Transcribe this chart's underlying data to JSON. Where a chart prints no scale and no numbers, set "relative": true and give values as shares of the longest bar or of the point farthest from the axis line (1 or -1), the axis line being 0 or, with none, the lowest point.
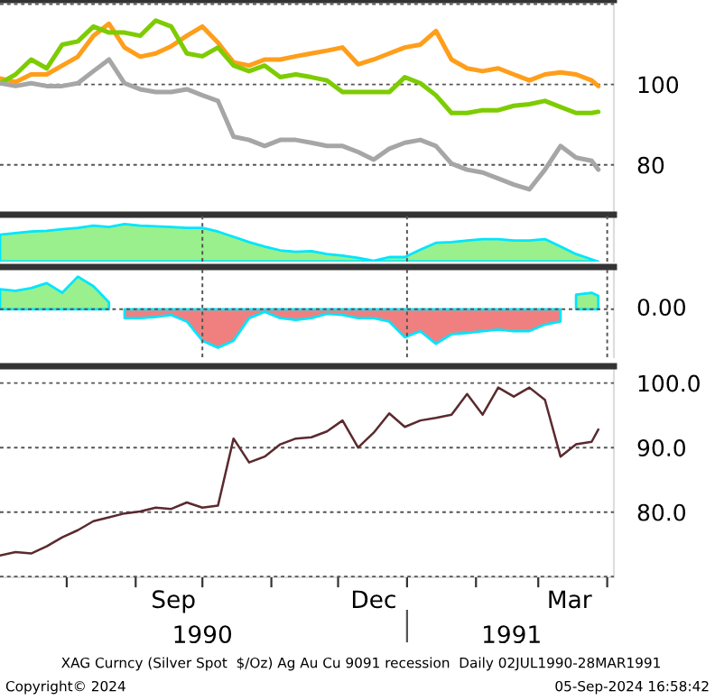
{
  "chart_data": [
    {
      "type": "line",
      "x": [
        "1990-07-02",
        "1990-07-09",
        "1990-07-16",
        "1990-07-23",
        "1990-07-30",
        "1990-08-06",
        "1990-08-13",
        "1990-08-20",
        "1990-08-27",
        "1990-09-03",
        "1990-09-10",
        "1990-09-17",
        "1990-09-24",
        "1990-10-01",
        "1990-10-08",
        "1990-10-15",
        "1990-10-22",
        "1990-10-29",
        "1990-11-05",
        "1990-11-12",
        "1990-11-19",
        "1990-11-26",
        "1990-12-03",
        "1990-12-10",
        "1990-12-17",
        "1990-12-24",
        "1990-12-31",
        "1991-01-07",
        "1991-01-14",
        "1991-01-21",
        "1991-01-28",
        "1991-02-04",
        "1991-02-11",
        "1991-02-18",
        "1991-02-25",
        "1991-03-04",
        "1991-03-11",
        "1991-03-18",
        "1991-03-25",
        "1991-03-28"
      ],
      "series": [
        {
          "color": "#ff9e1b",
          "values": [
            101.5,
            100.6,
            102.5,
            102.5,
            104.7,
            106.9,
            112.1,
            115.1,
            109.2,
            106.9,
            107.7,
            109.5,
            112.1,
            114.4,
            110.4,
            105.5,
            104.7,
            106.2,
            106.2,
            107,
            107.7,
            108.4,
            109.2,
            105,
            106.2,
            107.7,
            109.2,
            109.9,
            113.3,
            106.2,
            104,
            103.3,
            104,
            102.5,
            101,
            102.5,
            103,
            102.5,
            101,
            99.6
          ]
        },
        {
          "color": "#7dcc00",
          "values": [
            100.3,
            102.5,
            106.2,
            104,
            109.9,
            110.7,
            114.4,
            112.9,
            112.9,
            112.1,
            115.9,
            114.4,
            107.7,
            107,
            109.2,
            104.7,
            103.3,
            104.7,
            101.8,
            102.5,
            101.8,
            101,
            98.1,
            98.1,
            98.1,
            98.1,
            101.8,
            100.3,
            97.3,
            92.9,
            92.9,
            93.6,
            93.6,
            94.7,
            95.1,
            95.9,
            94.4,
            92.9,
            92.9,
            93.2
          ]
        },
        {
          "color": "#a6a6a6",
          "values": [
            100.3,
            99.6,
            100.3,
            99.6,
            99.6,
            100.3,
            103.3,
            106.2,
            100.3,
            98.8,
            98.1,
            98.1,
            98.8,
            97.3,
            95.9,
            87,
            86.2,
            84.7,
            86.2,
            86.2,
            85.5,
            84.7,
            84.7,
            83.2,
            81.3,
            84,
            85.5,
            86.2,
            84.7,
            80.3,
            78.8,
            78.1,
            76.6,
            75.1,
            73.9,
            78.8,
            84.7,
            81.8,
            81,
            78.8
          ]
        }
      ],
      "xlim": [
        "1990-07-02",
        "1991-04-04"
      ],
      "ylim": [
        68.5,
        121
      ],
      "yticks": [
        80,
        100,
        {
          "value": 120,
          "label": null
        }
      ],
      "grid": "y",
      "tick_labels": "y"
    },
    {
      "type": "area",
      "relative": true,
      "x": [
        "1990-07-02",
        "1990-07-09",
        "1990-07-16",
        "1990-07-23",
        "1990-07-30",
        "1990-08-06",
        "1990-08-13",
        "1990-08-20",
        "1990-08-27",
        "1990-09-03",
        "1990-09-10",
        "1990-09-17",
        "1990-09-24",
        "1990-10-01",
        "1990-10-08",
        "1990-10-15",
        "1990-10-22",
        "1990-10-29",
        "1990-11-05",
        "1990-11-12",
        "1990-11-19",
        "1990-11-26",
        "1990-12-03",
        "1990-12-10",
        "1990-12-17",
        "1990-12-24",
        "1990-12-31",
        "1991-01-07",
        "1991-01-14",
        "1991-01-21",
        "1991-01-28",
        "1991-02-04",
        "1991-02-11",
        "1991-02-18",
        "1991-02-25",
        "1991-03-04",
        "1991-03-11",
        "1991-03-18",
        "1991-03-25",
        "1991-03-28"
      ],
      "series": [
        {
          "color": "#99f08c",
          "values": [
            0.72,
            0.76,
            0.8,
            0.82,
            0.86,
            0.9,
            0.96,
            0.92,
            1,
            0.96,
            0.94,
            0.92,
            0.9,
            0.9,
            0.8,
            0.66,
            0.52,
            0.4,
            0.3,
            0.26,
            0.28,
            0.2,
            0.16,
            0.1,
            0.02,
            0.12,
            0.12,
            0.32,
            0.5,
            0.52,
            0.56,
            0.6,
            0.6,
            0.56,
            0.56,
            0.6,
            0.4,
            0.2,
            0.06,
            0
          ]
        }
      ],
      "xlim": [
        "1990-07-02",
        "1991-04-04"
      ],
      "xticks": [
        {
          "value": "1990-10-01",
          "label": null
        },
        {
          "value": "1991-01-01",
          "label": null
        },
        {
          "value": "1991-04-01",
          "label": null
        }
      ],
      "grid": "x",
      "tick_labels": false
    },
    {
      "type": "area",
      "relative": true,
      "x": [
        "1990-07-02",
        "1990-07-09",
        "1990-07-16",
        "1990-07-23",
        "1990-07-30",
        "1990-08-06",
        "1990-08-13",
        "1990-08-20",
        "1990-08-27",
        "1990-09-03",
        "1990-09-10",
        "1990-09-17",
        "1990-09-24",
        "1990-10-01",
        "1990-10-08",
        "1990-10-15",
        "1990-10-22",
        "1990-10-29",
        "1990-11-05",
        "1990-11-12",
        "1990-11-19",
        "1990-11-26",
        "1990-12-03",
        "1990-12-10",
        "1990-12-17",
        "1990-12-24",
        "1990-12-31",
        "1991-01-07",
        "1991-01-14",
        "1991-01-21",
        "1991-01-28",
        "1991-02-04",
        "1991-02-11",
        "1991-02-18",
        "1991-02-25",
        "1991-03-04",
        "1991-03-11",
        "1991-03-18",
        "1991-03-25",
        "1991-03-28"
      ],
      "series": [
        {
          "color": "#99f08c",
          "values": [
            0.52,
            0.48,
            0.55,
            0.68,
            0.43,
            0.85,
            0.6,
            0.18,
            null,
            null,
            null,
            null,
            null,
            null,
            null,
            null,
            null,
            null,
            null,
            null,
            null,
            null,
            null,
            null,
            null,
            null,
            null,
            null,
            null,
            null,
            null,
            null,
            null,
            null,
            null,
            null,
            null,
            0.38,
            0.43,
            0.35
          ]
        },
        {
          "color": "#f08080",
          "values": [
            null,
            null,
            null,
            null,
            null,
            null,
            null,
            null,
            -0.23,
            -0.23,
            -0.2,
            -0.15,
            -0.32,
            -0.82,
            -1,
            -0.82,
            -0.23,
            -0.07,
            -0.23,
            -0.28,
            -0.23,
            -0.12,
            -0.15,
            -0.23,
            -0.23,
            -0.32,
            -0.73,
            -0.57,
            -0.9,
            -0.65,
            -0.62,
            -0.57,
            -0.53,
            -0.57,
            -0.57,
            -0.4,
            -0.32,
            null,
            null,
            null
          ]
        }
      ],
      "xlim": [
        "1990-07-02",
        "1991-04-04"
      ],
      "xticks": [
        {
          "value": "1990-10-01",
          "label": null
        },
        {
          "value": "1991-01-01",
          "label": null
        },
        {
          "value": "1991-04-01",
          "label": null
        }
      ],
      "ref_lines": [
        {
          "axis": "y",
          "value": 0,
          "label": "0.00",
          "line_style": "dotted"
        }
      ],
      "grid": "x",
      "tick_labels": false
    },
    {
      "type": "line",
      "x": [
        "1990-07-02",
        "1990-07-09",
        "1990-07-16",
        "1990-07-23",
        "1990-07-30",
        "1990-08-06",
        "1990-08-13",
        "1990-08-20",
        "1990-08-27",
        "1990-09-03",
        "1990-09-10",
        "1990-09-17",
        "1990-09-24",
        "1990-10-01",
        "1990-10-08",
        "1990-10-15",
        "1990-10-22",
        "1990-10-29",
        "1990-11-05",
        "1990-11-12",
        "1990-11-19",
        "1990-11-26",
        "1990-12-03",
        "1990-12-10",
        "1990-12-17",
        "1990-12-24",
        "1990-12-31",
        "1991-01-07",
        "1991-01-14",
        "1991-01-21",
        "1991-01-28",
        "1991-02-04",
        "1991-02-11",
        "1991-02-18",
        "1991-02-25",
        "1991-03-04",
        "1991-03-11",
        "1991-03-18",
        "1991-03-25",
        "1991-03-28"
      ],
      "series": [
        {
          "color": "#5a2a2e",
          "values": [
            73.3,
            73.8,
            73.6,
            74.7,
            76.1,
            77.2,
            78.6,
            79.2,
            79.8,
            80.1,
            80.7,
            80.5,
            81.5,
            80.7,
            81,
            91.4,
            87.7,
            88.6,
            90.5,
            91.4,
            91.6,
            92.5,
            94.2,
            90,
            92.3,
            95.3,
            93.2,
            94.2,
            94.6,
            95.1,
            98.3,
            95.1,
            99.3,
            97.9,
            99.3,
            97.4,
            88.6,
            90.5,
            90.9,
            92.8
          ]
        }
      ],
      "xlim": [
        "1990-07-02",
        "1991-04-04"
      ],
      "ylim": [
        69.9,
        102.6
      ],
      "yticks": [
        {
          "value": 70,
          "label": null
        },
        {
          "value": 80,
          "label": "80.0"
        },
        {
          "value": 90,
          "label": "90.0"
        },
        {
          "value": 100,
          "label": "100.0"
        }
      ],
      "xticks": [
        {
          "value": "1990-08-01",
          "label": null
        },
        {
          "value": "1990-09-01",
          "label": null
        },
        {
          "value": "1990-09-18",
          "label": "Sep"
        },
        {
          "value": "1990-10-01",
          "label": null
        },
        {
          "value": "1990-11-01",
          "label": null
        },
        {
          "value": "1990-12-01",
          "label": null
        },
        {
          "value": "1990-12-17",
          "label": "Dec"
        },
        {
          "value": "1991-01-01",
          "label": null
        },
        {
          "value": "1991-02-01",
          "label": null
        },
        {
          "value": "1991-03-01",
          "label": null
        },
        {
          "value": "1991-03-15",
          "label": "Mar"
        },
        {
          "value": "1991-04-01",
          "label": null
        }
      ],
      "x2lim": [
        "1990-07-02",
        "1991-04-04"
      ],
      "x2ticks": [
        {
          "value": "1990-10-01",
          "label": "1990"
        },
        {
          "value": "1991-01-01",
          "label": null
        },
        {
          "value": "1991-02-17",
          "label": "1991"
        }
      ],
      "grid": "y",
      "annotations": [
        "XAG Curncy (Silver Spot  $/Oz) Ag Au Cu 9091 recession  Daily 02JUL1990-28MAR1991",
        "Copyright© 2024",
        "05-Sep-2024 16:58:42"
      ]
    }
  ]
}
